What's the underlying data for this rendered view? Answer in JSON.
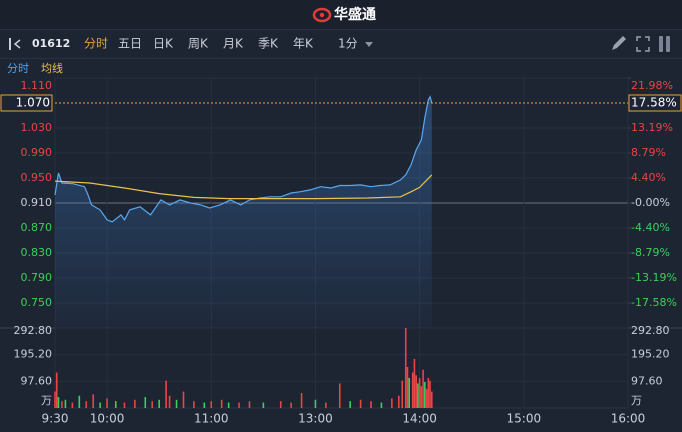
{
  "header": {
    "brand": "华盛通"
  },
  "toolbar": {
    "code": "01612",
    "tabs": [
      "分时",
      "五日",
      "日K",
      "周K",
      "月K",
      "季K",
      "年K"
    ],
    "active_tab": 0,
    "interval": "1分"
  },
  "legend_row": [
    "分时",
    "均线"
  ],
  "chart_data": {
    "type": "line",
    "x": [
      0,
      2,
      4,
      10,
      17,
      19,
      21,
      26,
      30,
      33,
      38,
      40,
      43,
      49,
      55,
      61,
      66,
      72,
      78,
      84,
      89,
      95,
      101,
      107,
      112,
      118,
      124,
      130,
      136,
      141,
      147,
      153,
      159,
      164,
      170,
      176,
      182,
      187,
      193,
      199,
      202,
      205,
      208,
      211,
      213,
      215,
      216,
      217
    ],
    "xlim": [
      0,
      330
    ],
    "xticks": [
      {
        "value": 0,
        "label": "9:30"
      },
      {
        "value": 30,
        "label": "10:00"
      },
      {
        "value": 90,
        "label": "11:00"
      },
      {
        "value": 150,
        "label": "13:00"
      },
      {
        "value": 210,
        "label": "14:00"
      },
      {
        "value": 270,
        "label": "15:00"
      },
      {
        "value": 330,
        "label": "16:00"
      }
    ],
    "series": [
      {
        "name": "分时",
        "color": "#5aa8f0",
        "values": [
          0.923,
          0.958,
          0.942,
          0.941,
          0.936,
          0.923,
          0.907,
          0.899,
          0.883,
          0.88,
          0.891,
          0.883,
          0.899,
          0.904,
          0.891,
          0.915,
          0.907,
          0.915,
          0.91,
          0.907,
          0.902,
          0.907,
          0.915,
          0.907,
          0.915,
          0.918,
          0.92,
          0.92,
          0.926,
          0.928,
          0.931,
          0.936,
          0.934,
          0.938,
          0.938,
          0.939,
          0.936,
          0.938,
          0.939,
          0.947,
          0.955,
          0.971,
          0.995,
          1.011,
          1.046,
          1.075,
          1.08,
          1.07
        ]
      },
      {
        "name": "均线",
        "color": "#e8c44a",
        "x": [
          0,
          20,
          40,
          60,
          80,
          100,
          150,
          180,
          199,
          205,
          210,
          217
        ],
        "values": [
          0.945,
          0.942,
          0.934,
          0.925,
          0.919,
          0.917,
          0.917,
          0.918,
          0.92,
          0.928,
          0.935,
          0.955
        ]
      }
    ],
    "ylim": [
      0.71,
      1.11
    ],
    "yticks": [
      {
        "value": 1.11,
        "label": "1.110"
      },
      {
        "value": 1.03,
        "label": "1.030"
      },
      {
        "value": 0.99,
        "label": "0.990"
      },
      {
        "value": 0.95,
        "label": "0.950"
      },
      {
        "value": 0.91,
        "label": "0.910"
      },
      {
        "value": 0.87,
        "label": "0.870"
      },
      {
        "value": 0.83,
        "label": "0.830"
      },
      {
        "value": 0.79,
        "label": "0.790"
      },
      {
        "value": 0.75,
        "label": "0.750"
      }
    ],
    "prev_close": 0.91,
    "y2lim": [
      -21.98,
      21.98
    ],
    "y2ticks": [
      {
        "value": 21.98,
        "label": "21.98%"
      },
      {
        "value": 13.19,
        "label": "13.19%"
      },
      {
        "value": 8.79,
        "label": "8.79%"
      },
      {
        "value": 4.4,
        "label": "4.40%"
      },
      {
        "value": 0,
        "label": "-0.00%"
      },
      {
        "value": -4.4,
        "label": "-4.40%"
      },
      {
        "value": -8.79,
        "label": "-8.79%"
      },
      {
        "value": -13.19,
        "label": "-13.19%"
      },
      {
        "value": -17.58,
        "label": "-17.58%"
      }
    ],
    "last_price": {
      "value": 1.07,
      "label": "1.070",
      "pct": 17.58,
      "pct_label": "17.58%"
    },
    "volume": {
      "unit": "万",
      "x": [
        0,
        1,
        2,
        4,
        6,
        10,
        14,
        18,
        22,
        26,
        30,
        35,
        40,
        46,
        52,
        56,
        60,
        64,
        66,
        70,
        74,
        80,
        86,
        90,
        96,
        100,
        106,
        112,
        120,
        130,
        136,
        142,
        150,
        156,
        164,
        170,
        176,
        182,
        188,
        194,
        198,
        200,
        202,
        203,
        204,
        206,
        207,
        208,
        209,
        210,
        211,
        212,
        213,
        214,
        215,
        216,
        217
      ],
      "values": [
        60,
        130,
        40,
        25,
        30,
        20,
        45,
        25,
        50,
        20,
        35,
        25,
        20,
        30,
        40,
        25,
        30,
        100,
        45,
        30,
        60,
        25,
        20,
        25,
        30,
        20,
        20,
        25,
        20,
        25,
        20,
        55,
        30,
        20,
        90,
        25,
        30,
        25,
        20,
        35,
        45,
        100,
        292.8,
        150,
        110,
        130,
        180,
        120,
        90,
        110,
        80,
        140,
        95,
        70,
        110,
        100,
        60
      ],
      "colors": [
        "#e84545",
        "#e84545",
        "#3ecf5a",
        "#e84545",
        "#3ecf5a",
        "#e84545",
        "#3ecf5a",
        "#e84545",
        "#e84545",
        "#3ecf5a",
        "#e84545",
        "#3ecf5a",
        "#e84545",
        "#e84545",
        "#3ecf5a",
        "#e84545",
        "#3ecf5a",
        "#e84545",
        "#e84545",
        "#3ecf5a",
        "#e84545",
        "#e84545",
        "#3ecf5a",
        "#e84545",
        "#e84545",
        "#3ecf5a",
        "#e84545",
        "#e84545",
        "#3ecf5a",
        "#e84545",
        "#e84545",
        "#e84545",
        "#3ecf5a",
        "#e84545",
        "#e84545",
        "#3ecf5a",
        "#e84545",
        "#e84545",
        "#3ecf5a",
        "#e84545",
        "#e84545",
        "#e84545",
        "#e84545",
        "#e84545",
        "#3ecf5a",
        "#e84545",
        "#e84545",
        "#e84545",
        "#3ecf5a",
        "#e84545",
        "#e84545",
        "#e84545",
        "#3ecf5a",
        "#e84545",
        "#e84545",
        "#e84545",
        "#e84545"
      ],
      "ylim": [
        0,
        292.8
      ],
      "yticks": [
        {
          "value": 292.8,
          "label": "292.80"
        },
        {
          "value": 195.2,
          "label": "195.20"
        },
        {
          "value": 97.6,
          "label": "97.60"
        }
      ]
    }
  }
}
